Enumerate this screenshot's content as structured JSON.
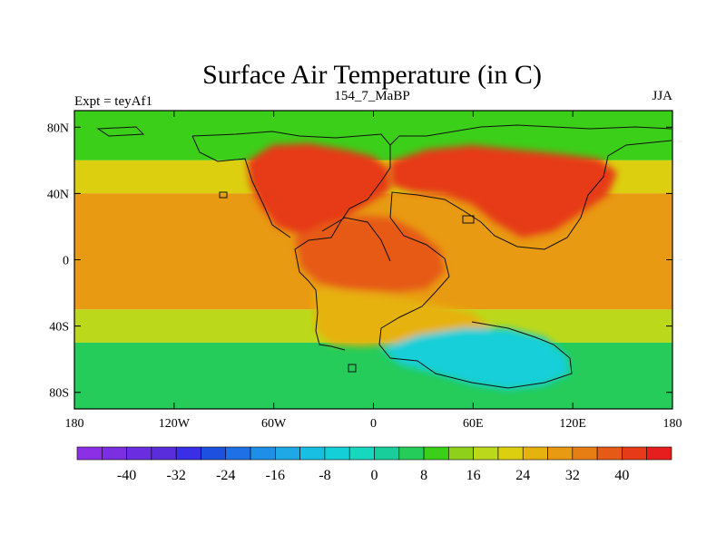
{
  "chart_data": {
    "type": "heatmap",
    "title": "Surface Air Temperature (in C)",
    "left_label": "Expt = teyAf1",
    "center_label": "154_7_MaBP",
    "right_label": "JJA",
    "x_ticks": [
      {
        "value": -180,
        "label": "180"
      },
      {
        "value": -120,
        "label": "120W"
      },
      {
        "value": -60,
        "label": "60W"
      },
      {
        "value": 0,
        "label": "0"
      },
      {
        "value": 60,
        "label": "60E"
      },
      {
        "value": 120,
        "label": "120E"
      },
      {
        "value": 180,
        "label": "180"
      }
    ],
    "y_ticks": [
      {
        "value": 80,
        "label": "80N"
      },
      {
        "value": 40,
        "label": "40N"
      },
      {
        "value": 0,
        "label": "0"
      },
      {
        "value": -40,
        "label": "40S"
      },
      {
        "value": -80,
        "label": "80S"
      }
    ],
    "xlim": [
      -180,
      180
    ],
    "ylim": [
      -90,
      90
    ],
    "units": "C",
    "colorbar": {
      "min": -48,
      "max": 48,
      "step": 4,
      "tick_labels": [
        {
          "value": -40,
          "label": "-40"
        },
        {
          "value": -32,
          "label": "-32"
        },
        {
          "value": -24,
          "label": "-24"
        },
        {
          "value": -16,
          "label": "-16"
        },
        {
          "value": -8,
          "label": "-8"
        },
        {
          "value": 0,
          "label": "0"
        },
        {
          "value": 8,
          "label": "8"
        },
        {
          "value": 16,
          "label": "16"
        },
        {
          "value": 24,
          "label": "24"
        },
        {
          "value": 32,
          "label": "32"
        },
        {
          "value": 40,
          "label": "40"
        }
      ],
      "colors": [
        "#8c30e6",
        "#7b2fe0",
        "#6a2ee0",
        "#5a2ddc",
        "#3a2ee6",
        "#1e50e0",
        "#1f6fe6",
        "#1e8fe8",
        "#1ea8e6",
        "#18bfe0",
        "#15cfd8",
        "#16d8bf",
        "#18cf9c",
        "#25cc5a",
        "#3ccf1a",
        "#8fd11a",
        "#bcd81a",
        "#dccf10",
        "#e6b210",
        "#e89a12",
        "#e67e14",
        "#e65a16",
        "#e63a18",
        "#e61e1e"
      ]
    },
    "fields": [
      {
        "region": "ocean-polar-north",
        "lat_range": [
          60,
          90
        ],
        "value": 8
      },
      {
        "region": "ocean-midlat-north",
        "lat_range": [
          40,
          60
        ],
        "value": 20
      },
      {
        "region": "ocean-tropics",
        "lat_range": [
          -30,
          40
        ],
        "value": 28
      },
      {
        "region": "ocean-southern-midlat",
        "lat_range": [
          -50,
          -30
        ],
        "value": 16
      },
      {
        "region": "ocean-southern-high",
        "lat_range": [
          -90,
          -50
        ],
        "value": 6
      },
      {
        "region": "laurasia-west-interior",
        "lat_range": [
          20,
          60
        ],
        "value": 42
      },
      {
        "region": "laurasia-east-interior",
        "lat_range": [
          20,
          60
        ],
        "value": 40
      },
      {
        "region": "gondwana-north",
        "lat_range": [
          -20,
          20
        ],
        "value": 36
      },
      {
        "region": "gondwana-south",
        "lat_range": [
          -50,
          -20
        ],
        "value": 24
      },
      {
        "region": "antarctica",
        "lat_range": [
          -80,
          -45
        ],
        "value": -6
      }
    ]
  }
}
